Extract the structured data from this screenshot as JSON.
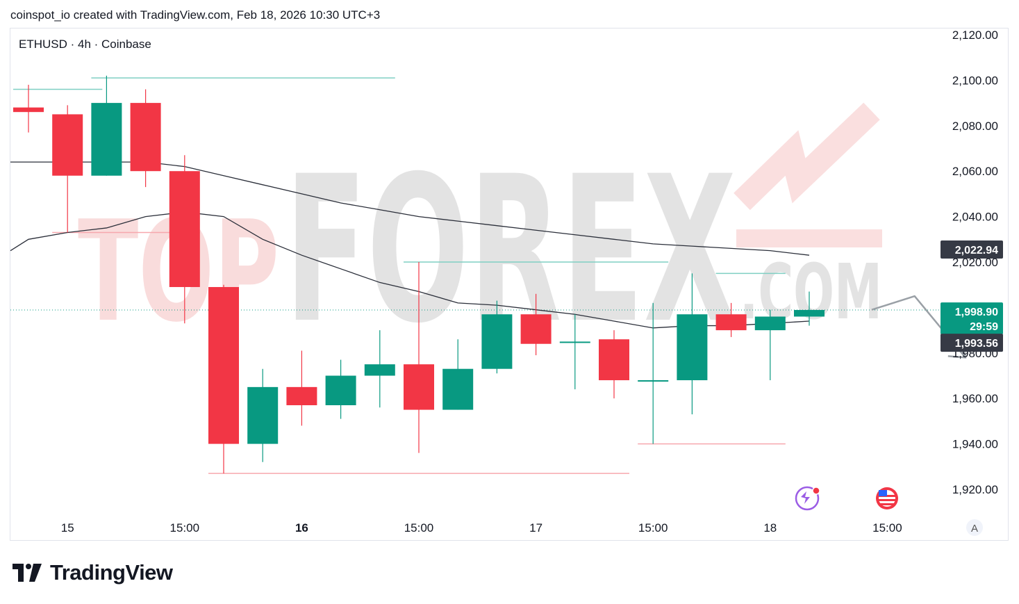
{
  "header": {
    "attribution": "coinspot_io created with TradingView.com, Feb 18, 2026 10:30 UTC+3",
    "symbol_line": "ETHUSD · 4h · Coinbase"
  },
  "watermark": {
    "text_left": "TOP",
    "text_main": "FOREX",
    "text_suffix": ".COM"
  },
  "footer": {
    "brand": "TradingView"
  },
  "colors": {
    "up": "#089981",
    "down": "#f23645",
    "ma": "#2a2e39",
    "level_up": "#7fcfc3",
    "level_down": "#f7a7ae",
    "current_line": "#089981",
    "label_dark": "#363a45",
    "watermark_red": "#f5c4c4",
    "watermark_gray": "#dadada"
  },
  "icons": {
    "scale_toggle": "A",
    "lightning_icon": "lightning-alert-icon",
    "flag_icon": "us-flag-icon"
  },
  "chart_data": {
    "type": "candlestick",
    "symbol": "ETHUSD",
    "interval": "4h",
    "exchange": "Coinbase",
    "ylim": [
      1910,
      2125
    ],
    "y_ticks": [
      "2,120.00",
      "2,100.00",
      "2,080.00",
      "2,060.00",
      "2,040.00",
      "2,020.00",
      "2,000.00",
      "1,980.00",
      "1,960.00",
      "1,940.00",
      "1,920.00"
    ],
    "x_ticks": [
      {
        "label": "15",
        "bar": 1,
        "bold": false
      },
      {
        "label": "15:00",
        "bar": 4,
        "bold": false
      },
      {
        "label": "16",
        "bar": 7,
        "bold": true
      },
      {
        "label": "15:00",
        "bar": 10,
        "bold": false
      },
      {
        "label": "17",
        "bar": 13,
        "bold": false
      },
      {
        "label": "15:00",
        "bar": 16,
        "bold": false
      },
      {
        "label": "18",
        "bar": 19,
        "bold": false
      },
      {
        "label": "15:00",
        "bar": 22,
        "bold": false
      }
    ],
    "candles": [
      {
        "o": 2088,
        "h": 2098,
        "l": 2077,
        "c": 2086
      },
      {
        "o": 2085,
        "h": 2089,
        "l": 2033,
        "c": 2058
      },
      {
        "o": 2058,
        "h": 2102,
        "l": 2058,
        "c": 2090
      },
      {
        "o": 2090,
        "h": 2096,
        "l": 2053,
        "c": 2060
      },
      {
        "o": 2060,
        "h": 2067,
        "l": 1993,
        "c": 2009
      },
      {
        "o": 2009,
        "h": 2010,
        "l": 1927,
        "c": 1940
      },
      {
        "o": 1940,
        "h": 1973,
        "l": 1932,
        "c": 1965
      },
      {
        "o": 1965,
        "h": 1981,
        "l": 1948,
        "c": 1957
      },
      {
        "o": 1957,
        "h": 1977,
        "l": 1951,
        "c": 1970
      },
      {
        "o": 1970,
        "h": 1990,
        "l": 1956,
        "c": 1975
      },
      {
        "o": 1975,
        "h": 2020,
        "l": 1936,
        "c": 1955
      },
      {
        "o": 1955,
        "h": 1986,
        "l": 1955,
        "c": 1973
      },
      {
        "o": 1973,
        "h": 2003,
        "l": 1971,
        "c": 1997
      },
      {
        "o": 1997,
        "h": 2006,
        "l": 1979,
        "c": 1984
      },
      {
        "o": 1985,
        "h": 1997,
        "l": 1964,
        "c": 1985
      },
      {
        "o": 1986,
        "h": 1990,
        "l": 1960,
        "c": 1968
      },
      {
        "o": 1968,
        "h": 2002,
        "l": 1940,
        "c": 1968
      },
      {
        "o": 1968,
        "h": 2015,
        "l": 1953,
        "c": 1997
      },
      {
        "o": 1997,
        "h": 2002,
        "l": 1987,
        "c": 1990
      },
      {
        "o": 1990,
        "h": 1999,
        "l": 1968,
        "c": 1996
      },
      {
        "o": 1996,
        "h": 2007,
        "l": 1992,
        "c": 1998.9
      }
    ],
    "series": [
      {
        "name": "MA slow",
        "values": [
          2064,
          2064,
          2064,
          2064,
          2062,
          2058,
          2054,
          2050,
          2046,
          2043,
          2040,
          2038,
          2036,
          2034,
          2032,
          2030,
          2028,
          2027,
          2026,
          2025,
          2023
        ]
      },
      {
        "name": "MA fast",
        "values": [
          2030,
          2033,
          2035,
          2040,
          2042,
          2040,
          2030,
          2023,
          2017,
          2011,
          2007,
          2002,
          2001,
          1999,
          1997,
          1994,
          1991,
          1992,
          1992,
          1993,
          1994
        ]
      }
    ],
    "levels": [
      {
        "price": 2096,
        "from_bar": 0,
        "to_bar": 1.5,
        "kind": "up"
      },
      {
        "price": 2101,
        "from_bar": 2,
        "to_bar": 9,
        "kind": "up"
      },
      {
        "price": 2033,
        "from_bar": 1,
        "to_bar": 4,
        "kind": "down"
      },
      {
        "price": 2020,
        "from_bar": 10,
        "to_bar": 16,
        "kind": "up"
      },
      {
        "price": 2015,
        "from_bar": 18,
        "to_bar": 19,
        "kind": "up"
      },
      {
        "price": 1940,
        "from_bar": 16,
        "to_bar": 19,
        "kind": "down"
      },
      {
        "price": 1927,
        "from_bar": 5,
        "to_bar": 15,
        "kind": "down"
      }
    ],
    "projection": [
      {
        "bar": 21.6,
        "price": 1999
      },
      {
        "bar": 22.7,
        "price": 2005
      },
      {
        "bar": 24,
        "price": 1978
      }
    ],
    "price_labels": {
      "ma_value": "2,022.94",
      "last_price": "1,998.90",
      "countdown": "29:59",
      "ma2_value": "1,993.56"
    }
  }
}
